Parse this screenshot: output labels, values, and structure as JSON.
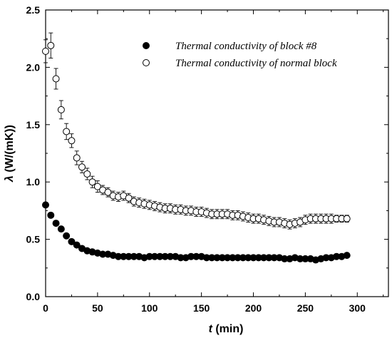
{
  "chart_data": {
    "type": "scatter",
    "xlabel_symbol": "t",
    "xlabel_unit": " (min)",
    "ylabel_symbol": "λ",
    "ylabel_unit": " (W/(mK))",
    "xlim": [
      0,
      330
    ],
    "ylim": [
      0,
      2.5
    ],
    "x_ticks": [
      0,
      50,
      100,
      150,
      200,
      250,
      300
    ],
    "x_tick_labels": [
      "0",
      "50",
      "100",
      "150",
      "200",
      "250",
      "300"
    ],
    "y_ticks": [
      0.0,
      0.5,
      1.0,
      1.5,
      2.0,
      2.5
    ],
    "y_tick_labels": [
      "0.0",
      "0.5",
      "1.0",
      "1.5",
      "2.0",
      "2.5"
    ],
    "grid": false,
    "legend_position": "top-right",
    "series": [
      {
        "name": "Thermal conductivity of block #8",
        "marker": "filled-circle",
        "color": "#000000",
        "x": [
          0,
          5,
          10,
          15,
          20,
          25,
          30,
          35,
          40,
          45,
          50,
          55,
          60,
          65,
          70,
          75,
          80,
          85,
          90,
          95,
          100,
          105,
          110,
          115,
          120,
          125,
          130,
          135,
          140,
          145,
          150,
          155,
          160,
          165,
          170,
          175,
          180,
          185,
          190,
          195,
          200,
          205,
          210,
          215,
          220,
          225,
          230,
          235,
          240,
          245,
          250,
          255,
          260,
          265,
          270,
          275,
          280,
          285,
          290
        ],
        "y": [
          0.8,
          0.71,
          0.64,
          0.59,
          0.53,
          0.48,
          0.45,
          0.42,
          0.4,
          0.39,
          0.38,
          0.37,
          0.37,
          0.36,
          0.35,
          0.35,
          0.35,
          0.35,
          0.35,
          0.34,
          0.35,
          0.35,
          0.35,
          0.35,
          0.35,
          0.35,
          0.34,
          0.34,
          0.35,
          0.35,
          0.35,
          0.34,
          0.34,
          0.34,
          0.34,
          0.34,
          0.34,
          0.34,
          0.34,
          0.34,
          0.34,
          0.34,
          0.34,
          0.34,
          0.34,
          0.34,
          0.33,
          0.33,
          0.34,
          0.33,
          0.33,
          0.33,
          0.32,
          0.33,
          0.34,
          0.34,
          0.35,
          0.35,
          0.36
        ]
      },
      {
        "name": "Thermal conductivity of normal block",
        "marker": "open-circle",
        "color": "#000000",
        "x": [
          0,
          5,
          10,
          15,
          20,
          25,
          30,
          35,
          40,
          45,
          50,
          55,
          60,
          65,
          70,
          75,
          80,
          85,
          90,
          95,
          100,
          105,
          110,
          115,
          120,
          125,
          130,
          135,
          140,
          145,
          150,
          155,
          160,
          165,
          170,
          175,
          180,
          185,
          190,
          195,
          200,
          205,
          210,
          215,
          220,
          225,
          230,
          235,
          240,
          245,
          250,
          255,
          260,
          265,
          270,
          275,
          280,
          285,
          290
        ],
        "y": [
          2.14,
          2.19,
          1.9,
          1.63,
          1.44,
          1.36,
          1.21,
          1.13,
          1.07,
          1.0,
          0.96,
          0.93,
          0.91,
          0.88,
          0.87,
          0.88,
          0.86,
          0.83,
          0.82,
          0.81,
          0.8,
          0.79,
          0.78,
          0.77,
          0.77,
          0.76,
          0.76,
          0.75,
          0.75,
          0.74,
          0.74,
          0.73,
          0.72,
          0.72,
          0.72,
          0.72,
          0.71,
          0.71,
          0.7,
          0.69,
          0.68,
          0.68,
          0.67,
          0.66,
          0.65,
          0.65,
          0.64,
          0.63,
          0.64,
          0.65,
          0.67,
          0.68,
          0.68,
          0.68,
          0.68,
          0.68,
          0.68,
          0.68,
          0.68
        ],
        "err": [
          0.1,
          0.11,
          0.09,
          0.08,
          0.07,
          0.06,
          0.06,
          0.05,
          0.05,
          0.05,
          0.05,
          0.04,
          0.04,
          0.04,
          0.04,
          0.04,
          0.04,
          0.04,
          0.04,
          0.04,
          0.04,
          0.04,
          0.04,
          0.04,
          0.04,
          0.04,
          0.04,
          0.04,
          0.04,
          0.04,
          0.04,
          0.04,
          0.04,
          0.04,
          0.04,
          0.04,
          0.04,
          0.04,
          0.04,
          0.04,
          0.04,
          0.04,
          0.04,
          0.04,
          0.04,
          0.04,
          0.04,
          0.04,
          0.04,
          0.04,
          0.04,
          0.04,
          0.04,
          0.04,
          0.04,
          0.04,
          0.03,
          0.03,
          0.03
        ]
      }
    ]
  }
}
